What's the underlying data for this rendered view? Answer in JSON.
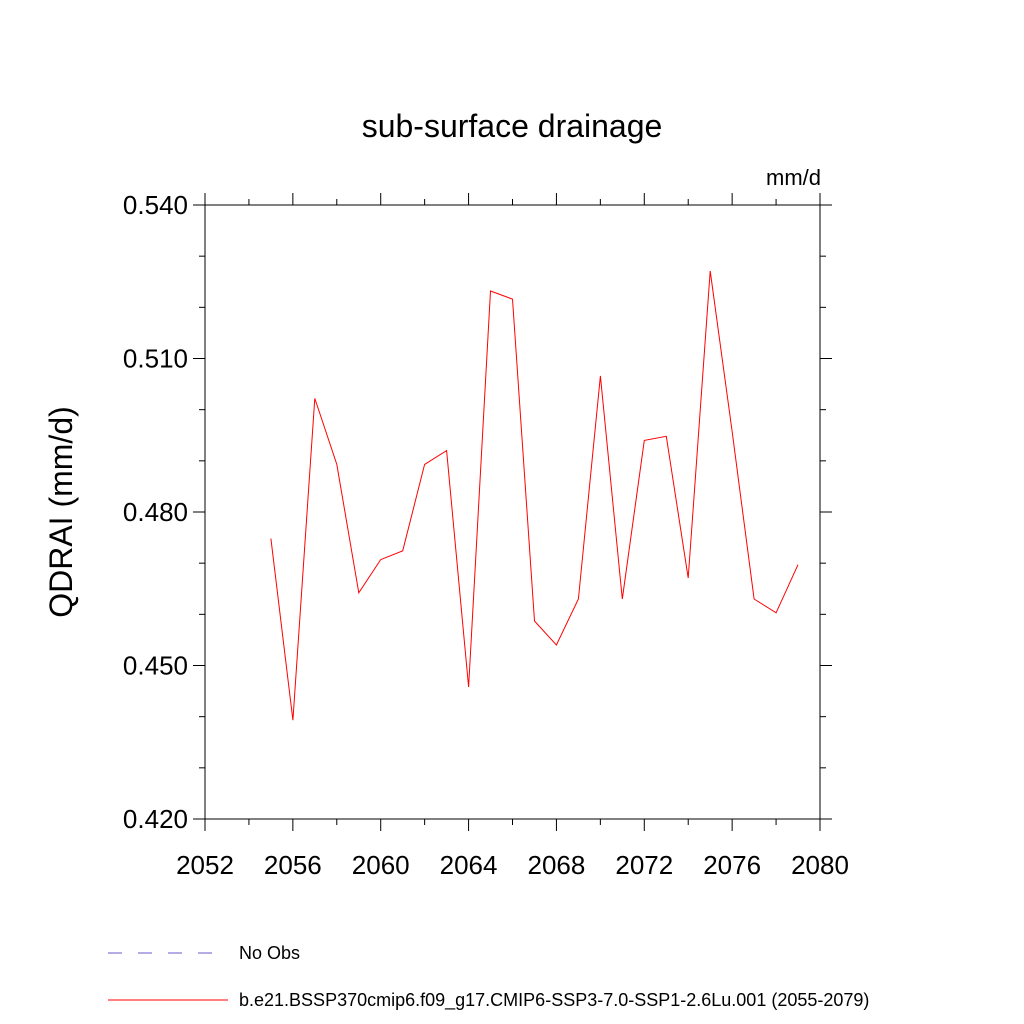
{
  "chart_data": {
    "type": "line",
    "title": "sub-surface drainage",
    "units": "mm/d",
    "ylabel": "QDRAI  (mm/d)",
    "xlabel": "",
    "xlim": [
      2052,
      2080
    ],
    "ylim": [
      0.42,
      0.54
    ],
    "x_ticks": [
      2052,
      2056,
      2060,
      2064,
      2068,
      2072,
      2076,
      2080
    ],
    "x_tick_labels": [
      "2052",
      "2056",
      "2060",
      "2064",
      "2068",
      "2072",
      "2076",
      "2080"
    ],
    "y_ticks": [
      0.42,
      0.45,
      0.48,
      0.51,
      0.54
    ],
    "y_tick_labels": [
      "0.420",
      "0.450",
      "0.480",
      "0.510",
      "0.540"
    ],
    "grid": false,
    "legend_position": "bottom-left",
    "series": [
      {
        "name": "b.e21.BSSP370cmip6.f09_g17.CMIP6-SSP3-7.0-SSP1-2.6Lu.001 (2055-2079)",
        "color": "#ff0000",
        "style": "solid",
        "x": [
          2055,
          2056,
          2057,
          2058,
          2059,
          2060,
          2061,
          2062,
          2063,
          2064,
          2065,
          2066,
          2067,
          2068,
          2069,
          2070,
          2071,
          2072,
          2073,
          2074,
          2075,
          2076,
          2077,
          2078,
          2079
        ],
        "y": [
          0.4748,
          0.4393,
          0.5022,
          0.4893,
          0.4642,
          0.4707,
          0.4724,
          0.4893,
          0.492,
          0.4458,
          0.5232,
          0.5216,
          0.4587,
          0.454,
          0.463,
          0.5066,
          0.463,
          0.494,
          0.4948,
          0.4671,
          0.5271,
          0.4958,
          0.463,
          0.4603,
          0.4697
        ]
      }
    ],
    "legend": [
      {
        "label": "No Obs",
        "color": "#6a5acd",
        "style": "dashed"
      },
      {
        "label": "b.e21.BSSP370cmip6.f09_g17.CMIP6-SSP3-7.0-SSP1-2.6Lu.001 (2055-2079)",
        "color": "#ff0000",
        "style": "solid"
      }
    ]
  }
}
